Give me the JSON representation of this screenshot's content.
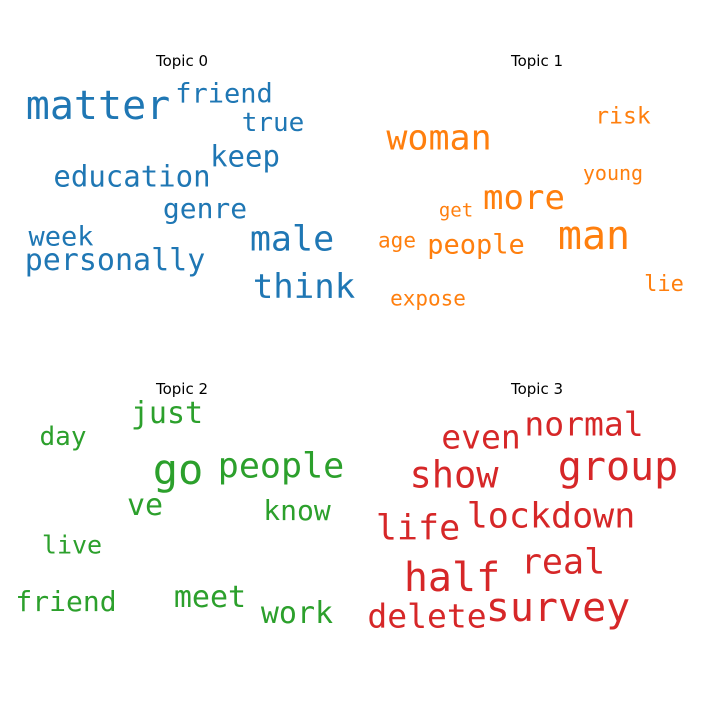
{
  "chart_data": [
    {
      "type": "wordcloud",
      "title": "Topic 0",
      "color": "#1f77b4",
      "words": [
        {
          "text": "matter",
          "size": 40
        },
        {
          "text": "friend",
          "size": 27
        },
        {
          "text": "true",
          "size": 26
        },
        {
          "text": "keep",
          "size": 29
        },
        {
          "text": "education",
          "size": 29
        },
        {
          "text": "genre",
          "size": 28
        },
        {
          "text": "week",
          "size": 27
        },
        {
          "text": "male",
          "size": 35
        },
        {
          "text": "personally",
          "size": 30
        },
        {
          "text": "think",
          "size": 34
        }
      ]
    },
    {
      "type": "wordcloud",
      "title": "Topic 1",
      "color": "#ff7f0e",
      "words": [
        {
          "text": "woman",
          "size": 35
        },
        {
          "text": "risk",
          "size": 23
        },
        {
          "text": "young",
          "size": 20
        },
        {
          "text": "more",
          "size": 34
        },
        {
          "text": "get",
          "size": 19
        },
        {
          "text": "man",
          "size": 40
        },
        {
          "text": "age",
          "size": 21
        },
        {
          "text": "people",
          "size": 27
        },
        {
          "text": "lie",
          "size": 22
        },
        {
          "text": "expose",
          "size": 21
        }
      ]
    },
    {
      "type": "wordcloud",
      "title": "Topic 2",
      "color": "#2ca02c",
      "words": [
        {
          "text": "just",
          "size": 30
        },
        {
          "text": "day",
          "size": 26
        },
        {
          "text": "go",
          "size": 42
        },
        {
          "text": "people",
          "size": 35
        },
        {
          "text": "ve",
          "size": 30
        },
        {
          "text": "know",
          "size": 28
        },
        {
          "text": "live",
          "size": 25
        },
        {
          "text": "friend",
          "size": 28
        },
        {
          "text": "meet",
          "size": 30
        },
        {
          "text": "work",
          "size": 30
        }
      ]
    },
    {
      "type": "wordcloud",
      "title": "Topic 3",
      "color": "#d62728",
      "words": [
        {
          "text": "normal",
          "size": 33
        },
        {
          "text": "even",
          "size": 33
        },
        {
          "text": "show",
          "size": 37
        },
        {
          "text": "group",
          "size": 40
        },
        {
          "text": "lockdown",
          "size": 35
        },
        {
          "text": "life",
          "size": 35
        },
        {
          "text": "half",
          "size": 40
        },
        {
          "text": "real",
          "size": 35
        },
        {
          "text": "survey",
          "size": 40
        },
        {
          "text": "delete",
          "size": 33
        }
      ]
    }
  ]
}
